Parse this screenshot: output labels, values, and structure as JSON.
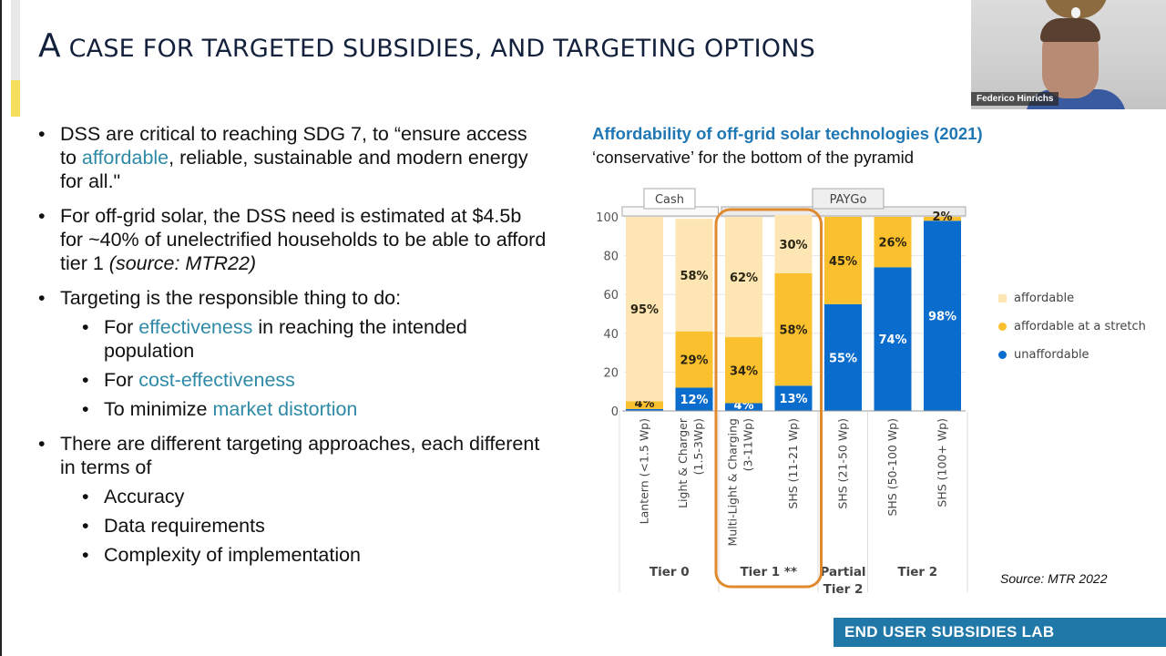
{
  "slide": {
    "title_first_letter": "A",
    "title_rest": "case for targeted subsidies, and targeting options",
    "bullets": [
      {
        "parts": [
          "DSS are critical to reaching SDG 7, to “ensure access to ",
          "affordable",
          ", reliable, sustainable and modern energy for all.\""
        ]
      },
      {
        "parts": [
          "For off-grid solar, the DSS need is estimated at $4.5b for ~40% of unelectrified households to be able to afford tier 1 ",
          "(source: MTR22)"
        ]
      },
      {
        "text": "Targeting is the responsible thing to do:",
        "sub": [
          {
            "parts": [
              "For ",
              "effectiveness",
              " in reaching the intended population"
            ]
          },
          {
            "parts": [
              "For ",
              "cost-effectiveness"
            ]
          },
          {
            "parts": [
              "To minimize ",
              "market distortion"
            ]
          }
        ]
      },
      {
        "text": "There are different targeting approaches, each different in terms of",
        "sub": [
          {
            "text": "Accuracy"
          },
          {
            "text": "Data requirements"
          },
          {
            "text": "Complexity of implementation"
          }
        ]
      }
    ],
    "source_note": "Source: MTR 2022",
    "footer_banner": "END USER SUBSIDIES LAB"
  },
  "webcam": {
    "participant_name": "Federico Hinrichs"
  },
  "colors": {
    "title": "#14213d",
    "highlight": "#2e8aa6",
    "chart_title": "#1f77b4",
    "affordable": "#fde6b3",
    "stretch": "#fbc02d",
    "unaffordable": "#0a6ccc",
    "highlight_box": "#e08a2e",
    "banner": "#1f78a8"
  },
  "chart_data": {
    "type": "bar",
    "stacked": true,
    "title": "Affordability of off-grid solar technologies (2021)",
    "subtitle": "‘conservative’ for the bottom of the pyramid",
    "xlabel": "",
    "ylabel": "",
    "ylim": [
      0,
      100
    ],
    "yticks": [
      0,
      20,
      40,
      60,
      80,
      100
    ],
    "grid": true,
    "legend_position": "right",
    "categories": [
      "Lantern  (<1.5 Wp)",
      "Light & Charger (1.5-3Wp)",
      "Multi-Light & Charging (3-11Wp)",
      "SHS  (11-21 Wp)",
      "SHS  (21-50 Wp)",
      "SHS  (50-100 Wp)",
      "SHS  (100+ Wp)"
    ],
    "series": [
      {
        "name": "unaffordable",
        "values": [
          1,
          12,
          4,
          13,
          55,
          74,
          98
        ],
        "labels": [
          "",
          "12%",
          "4%",
          "13%",
          "55%",
          "74%",
          "98%"
        ]
      },
      {
        "name": "affordable at a stretch",
        "values": [
          4,
          29,
          34,
          58,
          45,
          26,
          2
        ],
        "labels": [
          "4%",
          "29%",
          "34%",
          "58%",
          "45%",
          "26%",
          "2%"
        ]
      },
      {
        "name": "affordable",
        "values": [
          95,
          58,
          62,
          30,
          0,
          0,
          0
        ],
        "labels": [
          "95%",
          "58%",
          "62%",
          "30%",
          "",
          "",
          ""
        ]
      }
    ],
    "legend": [
      "affordable",
      "affordable at a stretch",
      "unaffordable"
    ],
    "payment_groups": [
      {
        "label": "Cash",
        "from": 0,
        "to": 1
      },
      {
        "label": "PAYGo",
        "from": 2,
        "to": 6
      }
    ],
    "tier_groups": [
      {
        "label": "Tier 0",
        "from": 0,
        "to": 1
      },
      {
        "label": "Tier 1 **",
        "from": 2,
        "to": 3
      },
      {
        "label": "Partial Tier 2",
        "from": 4,
        "to": 4
      },
      {
        "label": "Tier 2",
        "from": 5,
        "to": 6
      }
    ],
    "highlighted_group": "Tier 1 **",
    "annotations": [
      "Source: MTR 2022"
    ]
  }
}
